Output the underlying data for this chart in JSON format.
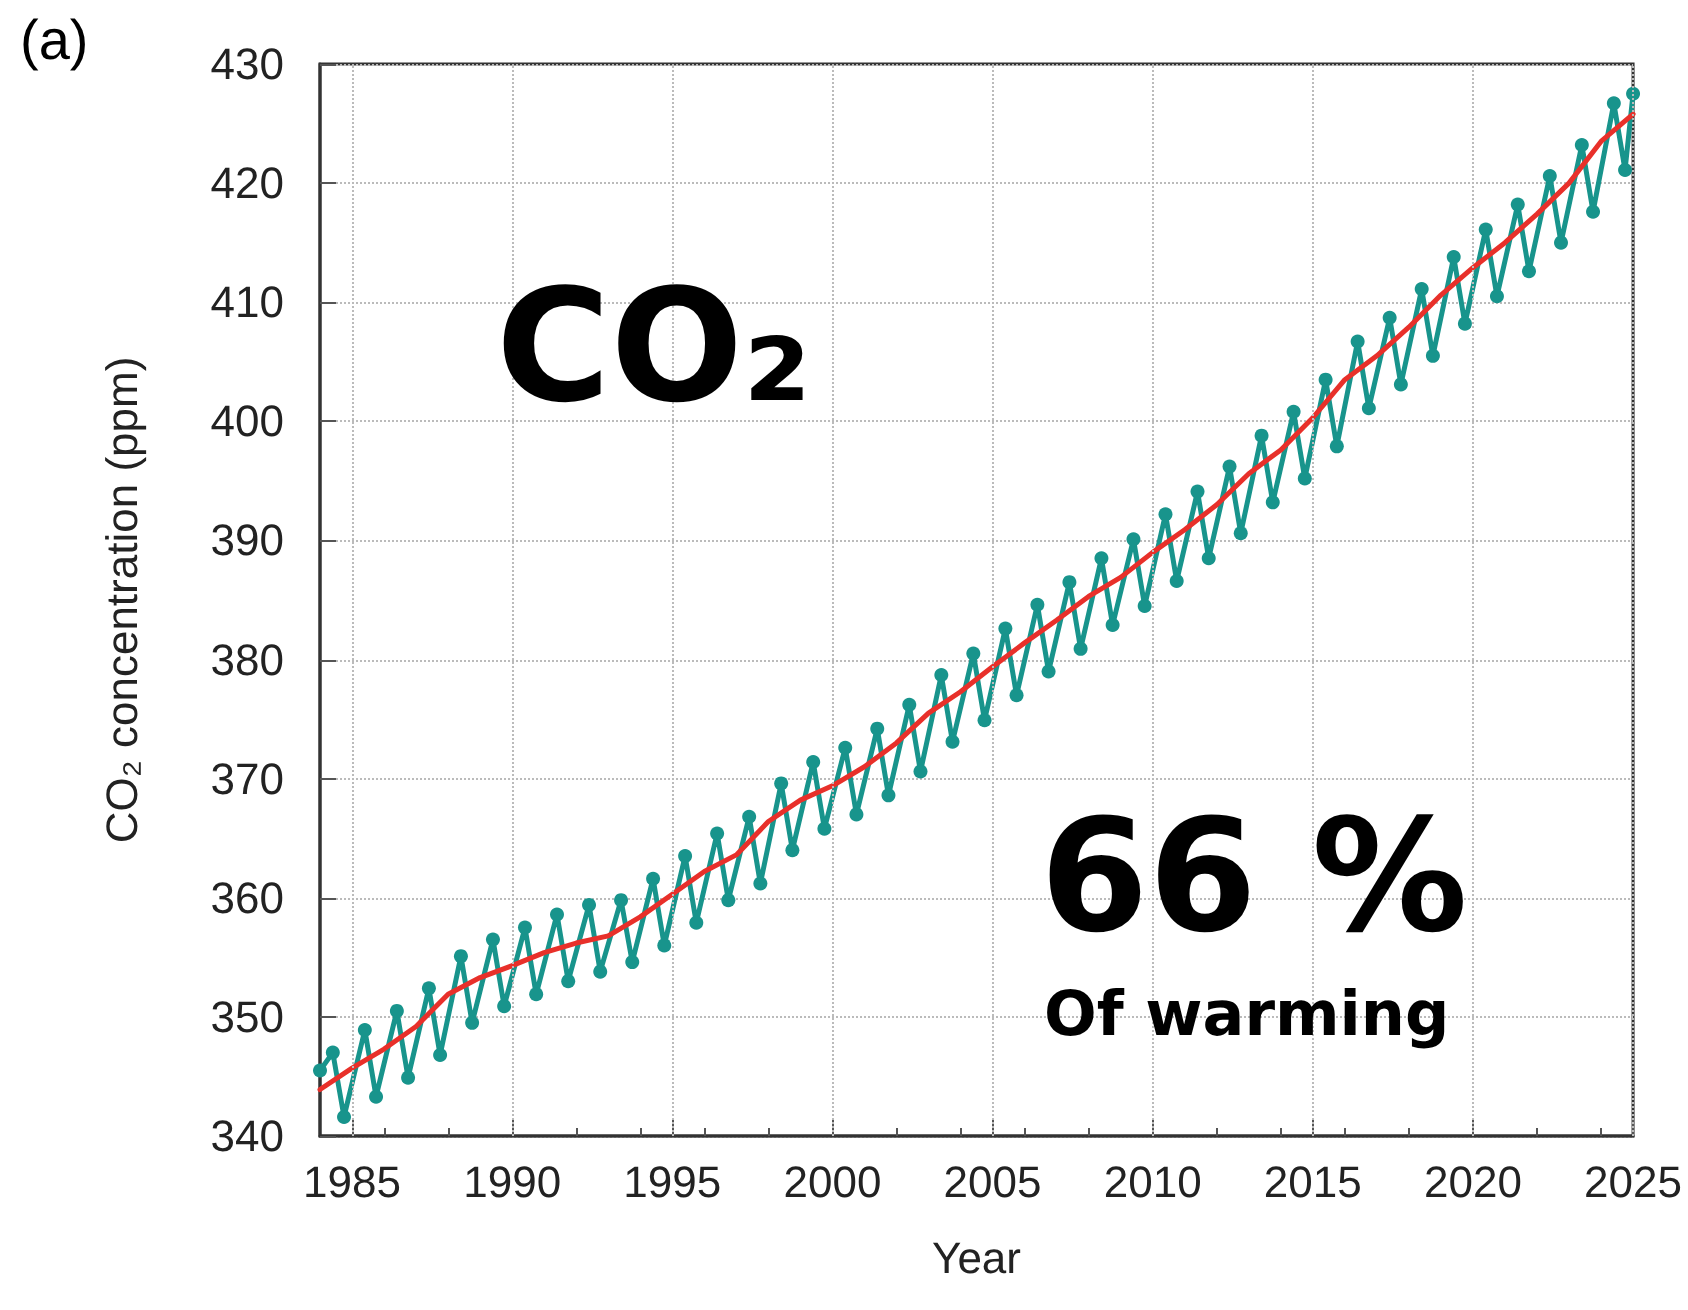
{
  "chart_data": {
    "type": "line",
    "xlabel": "Year",
    "ylabel": "CO₂ concentration (ppm)",
    "annotations": [
      "(a)",
      "CO₂",
      "66 %",
      "Of warming"
    ],
    "xlim": [
      1984,
      2025
    ],
    "xticks": [
      1985,
      1990,
      1995,
      2000,
      2005,
      2010,
      2015,
      2020,
      2025
    ],
    "ylim": [
      340,
      430
    ],
    "yticks": [
      340,
      350,
      360,
      370,
      380,
      390,
      400,
      410,
      420,
      430
    ],
    "grid": true,
    "series": [
      {
        "color": "#18948c",
        "marker": "circle",
        "x": [
          1984.0,
          1984.4,
          1984.75,
          1985.4,
          1985.75,
          1986.4,
          1986.75,
          1987.4,
          1987.75,
          1988.4,
          1988.75,
          1989.4,
          1989.75,
          1990.4,
          1990.75,
          1991.4,
          1991.75,
          1992.4,
          1992.75,
          1993.4,
          1993.75,
          1994.4,
          1994.75,
          1995.4,
          1995.75,
          1996.4,
          1996.75,
          1997.4,
          1997.75,
          1998.4,
          1998.75,
          1999.4,
          1999.75,
          2000.4,
          2000.75,
          2001.4,
          2001.75,
          2002.4,
          2002.75,
          2003.4,
          2003.75,
          2004.4,
          2004.75,
          2005.4,
          2005.75,
          2006.4,
          2006.75,
          2007.4,
          2007.75,
          2008.4,
          2008.75,
          2009.4,
          2009.75,
          2010.4,
          2010.75,
          2011.4,
          2011.75,
          2012.4,
          2012.75,
          2013.4,
          2013.75,
          2014.4,
          2014.75,
          2015.4,
          2015.75,
          2016.4,
          2016.75,
          2017.4,
          2017.75,
          2018.4,
          2018.75,
          2019.4,
          2019.75,
          2020.4,
          2020.75,
          2021.4,
          2021.75,
          2022.4,
          2022.75,
          2023.4,
          2023.75,
          2024.4,
          2024.75,
          2025.0
        ],
        "values": [
          345.5,
          347.0,
          341.6,
          348.9,
          343.3,
          350.5,
          344.9,
          352.4,
          346.8,
          355.1,
          349.5,
          356.5,
          350.9,
          357.5,
          351.9,
          358.6,
          353.0,
          359.4,
          353.8,
          359.8,
          354.6,
          361.6,
          356.0,
          363.5,
          357.9,
          365.4,
          359.8,
          366.8,
          361.2,
          369.6,
          364.0,
          371.4,
          365.8,
          372.6,
          367.0,
          374.2,
          368.6,
          376.2,
          370.6,
          378.7,
          373.1,
          380.5,
          374.9,
          382.6,
          377.0,
          384.6,
          379.0,
          386.5,
          380.9,
          388.5,
          382.9,
          390.1,
          384.5,
          392.2,
          386.6,
          394.1,
          388.5,
          396.2,
          390.6,
          398.8,
          393.2,
          400.8,
          395.2,
          403.5,
          397.9,
          406.7,
          401.1,
          408.7,
          403.1,
          411.1,
          405.5,
          413.8,
          408.2,
          416.1,
          410.5,
          418.2,
          412.6,
          420.6,
          415.0,
          423.2,
          417.6,
          426.7,
          421.1,
          427.5
        ]
      },
      {
        "color": "#e8302a",
        "marker": "none",
        "x": [
          1984,
          1985,
          1986,
          1987,
          1988,
          1989,
          1990,
          1991,
          1992,
          1993,
          1994,
          1995,
          1996,
          1997,
          1998,
          1999,
          2000,
          2001,
          2002,
          2003,
          2004,
          2005,
          2006,
          2007,
          2008,
          2009,
          2010,
          2011,
          2012,
          2013,
          2014,
          2015,
          2016,
          2017,
          2018,
          2019,
          2020,
          2021,
          2022,
          2023,
          2024,
          2025
        ],
        "values": [
          343.9,
          345.7,
          347.3,
          349.2,
          351.9,
          353.3,
          354.3,
          355.4,
          356.2,
          356.8,
          358.4,
          360.3,
          362.2,
          363.6,
          366.4,
          368.2,
          369.4,
          371.0,
          373.0,
          375.5,
          377.3,
          379.4,
          381.4,
          383.3,
          385.3,
          386.9,
          389.0,
          390.9,
          393.0,
          395.6,
          397.6,
          400.3,
          403.5,
          405.5,
          407.9,
          410.6,
          412.9,
          415.0,
          417.4,
          420.0,
          423.5,
          425.8
        ]
      }
    ]
  }
}
